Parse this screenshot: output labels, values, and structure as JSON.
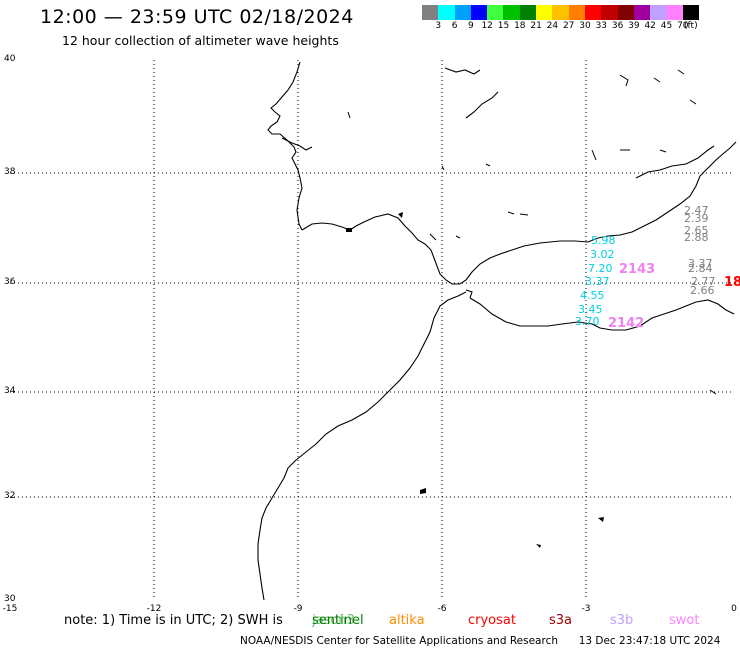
{
  "header": {
    "title": "12:00 — 23:59 UTC 02/18/2024",
    "subtitle": "12 hour collection of altimeter wave heights"
  },
  "colorbar": {
    "colors": [
      "#808080",
      "#00ffff",
      "#00a0ff",
      "#0000ff",
      "#40ff40",
      "#00c000",
      "#008000",
      "#ffff00",
      "#ffc000",
      "#ff8000",
      "#ff0000",
      "#c00000",
      "#800000",
      "#a000a0",
      "#c0a0ff",
      "#ff80ff",
      "#000000"
    ],
    "labels": [
      "3",
      "6",
      "9",
      "12",
      "15",
      "18",
      "21",
      "24",
      "27",
      "30",
      "33",
      "36",
      "39",
      "42",
      "45",
      "70",
      "(ft)"
    ]
  },
  "axes": {
    "lon_ticks": [
      "-15",
      "-12",
      "-9",
      "-6",
      "-3",
      "0"
    ],
    "lat_ticks": [
      "40",
      "38",
      "36",
      "34",
      "32",
      "30"
    ]
  },
  "wave_heights": {
    "cyan_track": [
      "5.98",
      "3.02",
      "7.20",
      "3.37",
      "4.55",
      "3.45",
      "3.70"
    ],
    "gray_track": [
      "2.47",
      "2.39",
      "2.65",
      "2.88",
      "3.37",
      "2.84",
      "2.77",
      "2.66"
    ],
    "pass_labels": [
      {
        "text": "2143",
        "color": "#ee82ee"
      },
      {
        "text": "2142",
        "color": "#ee82ee"
      },
      {
        "text": "18",
        "color": "#ff0000"
      }
    ]
  },
  "note": {
    "text": "note: 1) Time is in UTC; 2) SWH is",
    "jason_overlap": "jason3",
    "sats": [
      {
        "name": "sentinel",
        "color": "#008000"
      },
      {
        "name": "altika",
        "color": "#ff8c00"
      },
      {
        "name": "cryosat",
        "color": "#ff0000"
      },
      {
        "name": "s3a",
        "color": "#a00000"
      },
      {
        "name": "s3b",
        "color": "#c0a0ff"
      },
      {
        "name": "swot",
        "color": "#ff80ff"
      }
    ]
  },
  "footer": {
    "credit": "NOAA/NESDIS Center for Satellite Applications and Research",
    "timestamp": "13 Dec 23:47:18 UTC 2024"
  }
}
